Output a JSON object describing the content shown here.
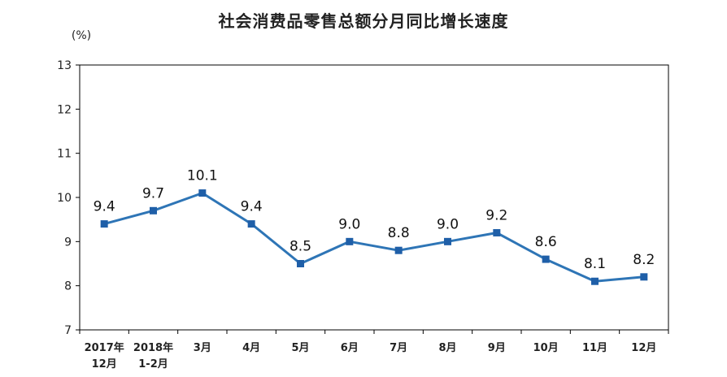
{
  "chart_data": {
    "type": "line",
    "title": "社会消费品零售总额分月同比增长速度",
    "ylabel": "(%)",
    "xlabel": "",
    "categories": [
      "2017年\n12月",
      "2018年\n1-2月",
      "3月",
      "4月",
      "5月",
      "6月",
      "7月",
      "8月",
      "9月",
      "10月",
      "11月",
      "12月"
    ],
    "series": [
      {
        "values": [
          9.4,
          9.7,
          10.1,
          9.4,
          8.5,
          9.0,
          8.8,
          9.0,
          9.2,
          8.6,
          8.1,
          8.2
        ]
      }
    ],
    "data_labels": [
      "9.4",
      "9.7",
      "10.1",
      "9.4",
      "8.5",
      "9.0",
      "8.8",
      "9.0",
      "9.2",
      "8.6",
      "8.1",
      "8.2"
    ],
    "yticks": [
      "7",
      "8",
      "9",
      "10",
      "11",
      "12",
      "13"
    ],
    "ylim": [
      7,
      13
    ],
    "grid": false,
    "legend": "none",
    "colors": {
      "line": "#2E75B6",
      "marker": "#1F5FA8",
      "axis": "#000000",
      "text": "#222222"
    }
  }
}
